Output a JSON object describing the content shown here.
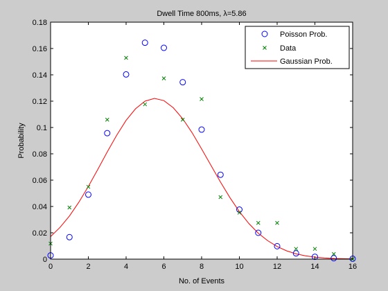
{
  "chart_data": {
    "type": "scatter",
    "title": "Dwell Time 800ms, λ=5.86",
    "xlabel": "No. of Events",
    "ylabel": "Probability",
    "xlim": [
      0,
      16
    ],
    "ylim": [
      0,
      0.18
    ],
    "xticks": [
      "0",
      "2",
      "4",
      "6",
      "8",
      "10",
      "12",
      "14",
      "16"
    ],
    "yticks": [
      "0",
      "0.02",
      "0.04",
      "0.06",
      "0.08",
      "0.1",
      "0.12",
      "0.14",
      "0.16",
      "0.18"
    ],
    "grid": false,
    "legend_position": "top-right",
    "series": [
      {
        "name": "Poisson Prob.",
        "marker": "circle",
        "color": "#0000ff",
        "x": [
          0,
          1,
          2,
          3,
          4,
          5,
          6,
          7,
          8,
          9,
          10,
          11,
          12,
          13,
          14,
          15,
          16
        ],
        "y": [
          0.0028,
          0.0167,
          0.049,
          0.0957,
          0.1403,
          0.1644,
          0.1605,
          0.1344,
          0.0984,
          0.0641,
          0.0376,
          0.02,
          0.0098,
          0.0044,
          0.0018,
          0.0007,
          0.0003
        ]
      },
      {
        "name": "Data",
        "marker": "x",
        "color": "#008000",
        "x": [
          0,
          1,
          2,
          3,
          4,
          5,
          6,
          7,
          8,
          9,
          10,
          11,
          12,
          13,
          14,
          15,
          16
        ],
        "y": [
          0.0118,
          0.0392,
          0.0549,
          0.1059,
          0.1529,
          0.1176,
          0.1373,
          0.1059,
          0.1216,
          0.0471,
          0.0353,
          0.0275,
          0.0275,
          0.0078,
          0.0078,
          0.0039,
          0.0
        ]
      },
      {
        "name": "Gaussian Prob.",
        "marker": "line",
        "color": "#ff0000",
        "mean": 5.86,
        "variance": 8.2,
        "x": [
          0,
          0.5,
          1,
          1.5,
          2,
          2.5,
          3,
          3.5,
          4,
          4.5,
          5,
          5.5,
          6,
          6.5,
          7,
          7.5,
          8,
          8.5,
          9,
          9.5,
          10,
          10.5,
          11,
          11.5,
          12,
          12.5,
          13,
          13.5,
          14,
          14.5,
          15,
          15.5,
          16
        ],
        "y": [
          0.0171,
          0.0241,
          0.0328,
          0.0433,
          0.0552,
          0.0681,
          0.0814,
          0.0941,
          0.1054,
          0.1142,
          0.12,
          0.1221,
          0.1204,
          0.115,
          0.1066,
          0.0959,
          0.0837,
          0.0711,
          0.0585,
          0.0467,
          0.0361,
          0.0271,
          0.0197,
          0.014,
          0.0096,
          0.0063,
          0.004,
          0.0025,
          0.0015,
          0.0009,
          0.0005,
          0.0003,
          0.0002
        ]
      }
    ]
  }
}
